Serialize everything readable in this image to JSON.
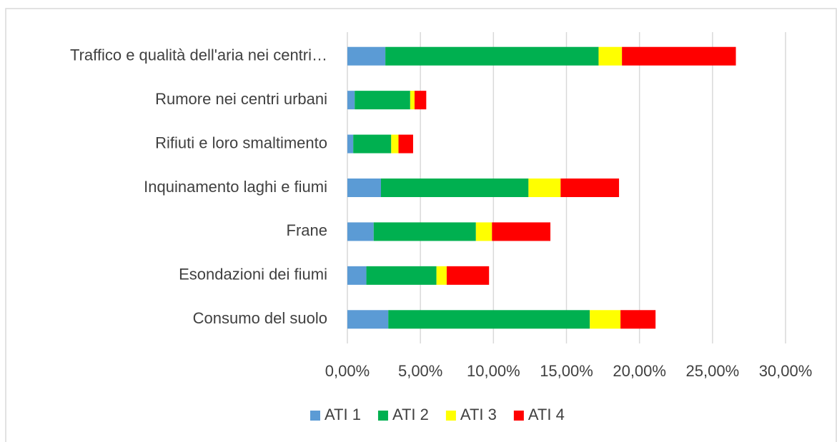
{
  "chart_data": {
    "type": "bar",
    "orientation": "horizontal",
    "stacked": true,
    "categories": [
      "Traffico e qualità dell'aria nei centri…",
      "Rumore nei centri urbani",
      "Rifiuti e loro smaltimento",
      "Inquinamento laghi e fiumi",
      "Frane",
      "Esondazioni dei fiumi",
      "Consumo del suolo"
    ],
    "series": [
      {
        "name": "ATI 1",
        "color": "#5b9bd5",
        "values": [
          2.6,
          0.5,
          0.4,
          2.3,
          1.8,
          1.3,
          2.8
        ]
      },
      {
        "name": "ATI 2",
        "color": "#00b050",
        "values": [
          14.6,
          3.8,
          2.6,
          10.1,
          7.0,
          4.8,
          13.8
        ]
      },
      {
        "name": "ATI 3",
        "color": "#ffff00",
        "values": [
          1.6,
          0.3,
          0.5,
          2.2,
          1.1,
          0.7,
          2.1
        ]
      },
      {
        "name": "ATI 4",
        "color": "#ff0000",
        "values": [
          7.8,
          0.8,
          1.0,
          4.0,
          4.0,
          2.9,
          2.4
        ]
      }
    ],
    "xlim": [
      0,
      30
    ],
    "xticks": [
      {
        "value": 0,
        "label": "0,00%"
      },
      {
        "value": 5,
        "label": "5,00%"
      },
      {
        "value": 10,
        "label": "10,00%"
      },
      {
        "value": 15,
        "label": "15,00%"
      },
      {
        "value": 20,
        "label": "20,00%"
      },
      {
        "value": 25,
        "label": "25,00%"
      },
      {
        "value": 30,
        "label": "30,00%"
      }
    ],
    "grid": true,
    "legend": "bottom"
  }
}
